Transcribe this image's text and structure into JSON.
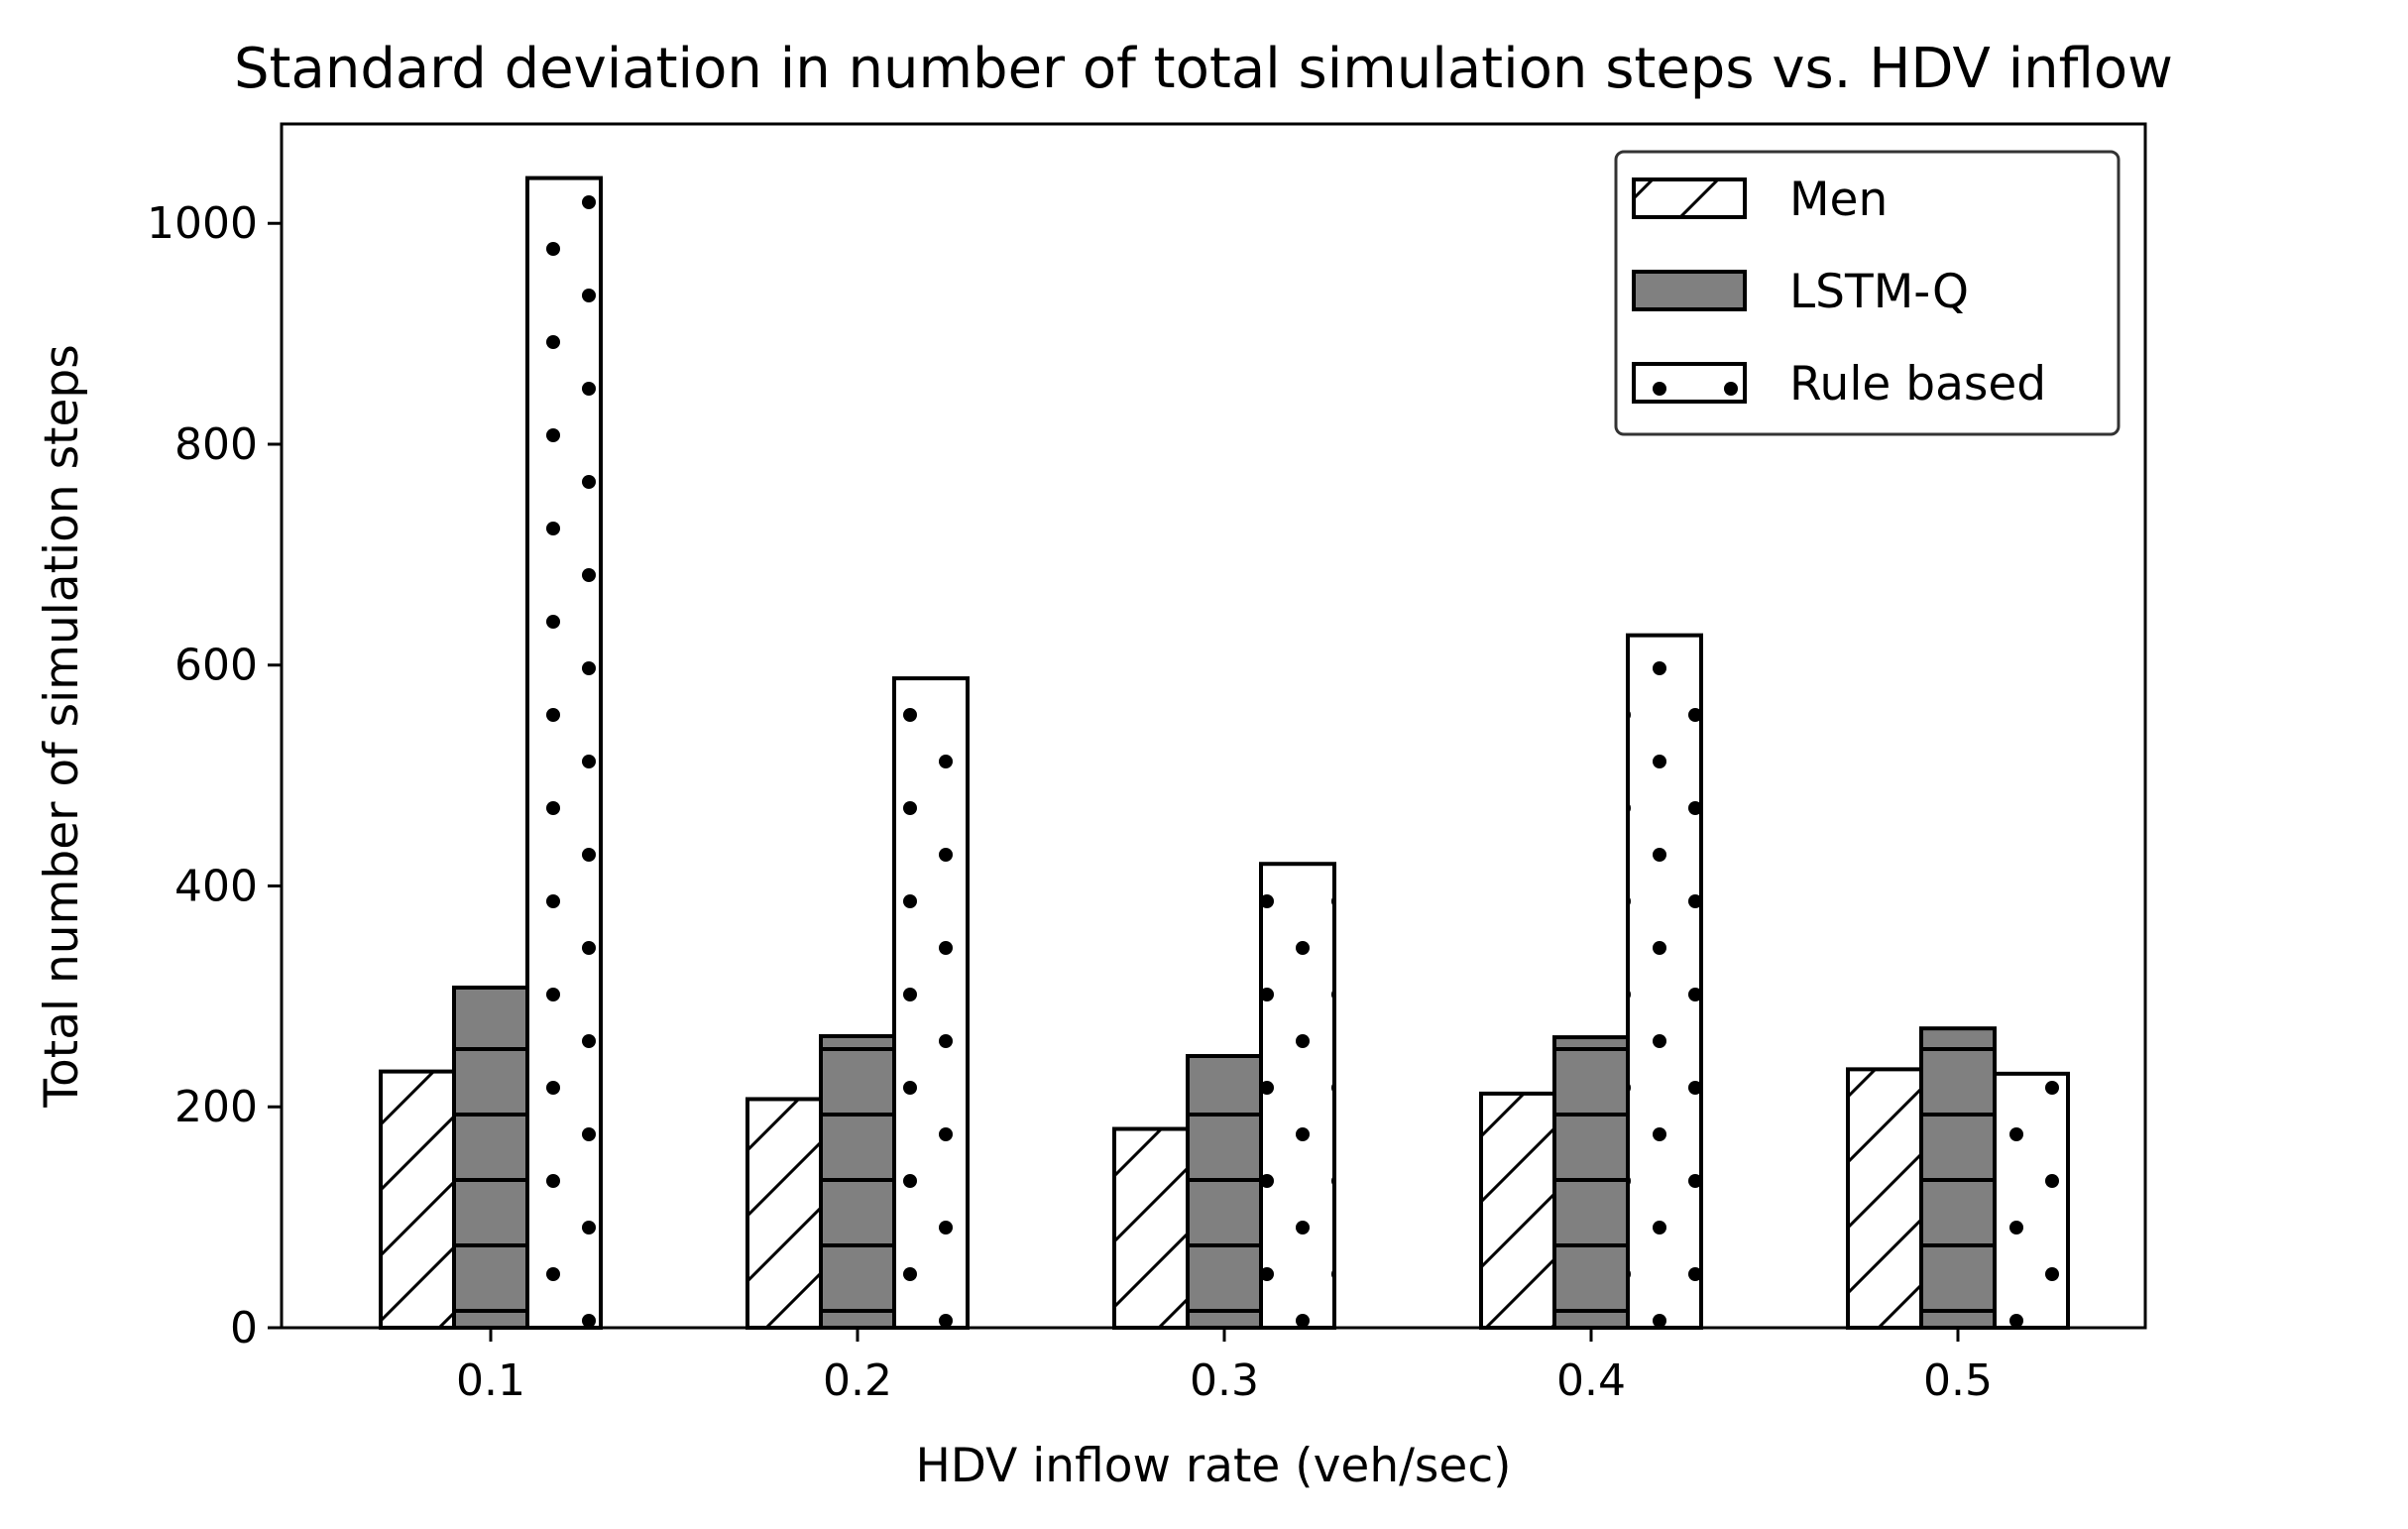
{
  "chart_data": {
    "type": "bar",
    "title": "Standard deviation in number of total simulation steps vs. HDV inflow",
    "xlabel": "HDV inflow rate (veh/sec)",
    "ylabel": "Total number of simulation steps",
    "categories": [
      "0.1",
      "0.2",
      "0.3",
      "0.4",
      "0.5"
    ],
    "series": [
      {
        "name": "Men",
        "values": [
          232,
          207,
          180,
          212,
          234
        ],
        "fill": "#ffffff",
        "hatch": "diagonal"
      },
      {
        "name": "LSTM-Q",
        "values": [
          308,
          264,
          246,
          263,
          271
        ],
        "fill": "#808080",
        "hatch": "horizontal"
      },
      {
        "name": "Rule based",
        "values": [
          1041,
          588,
          420,
          627,
          230
        ],
        "fill": "#ffffff",
        "hatch": "dots"
      }
    ],
    "ylim": [
      0,
      1090
    ],
    "yticks": [
      0,
      200,
      400,
      600,
      800,
      1000
    ],
    "grid": false,
    "legend_position": "top-right"
  }
}
